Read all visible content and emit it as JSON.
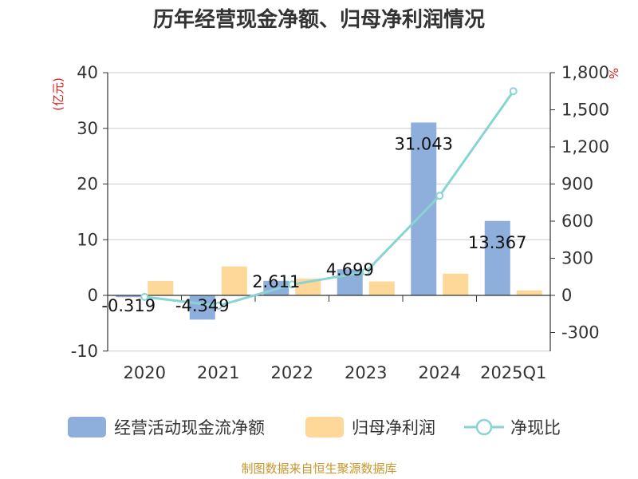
{
  "chart_data": {
    "type": "bar",
    "title": "历年经营现金净额、归母净利润情况",
    "categories": [
      "2020",
      "2021",
      "2022",
      "2023",
      "2024",
      "2025Q1"
    ],
    "left_axis": {
      "unit_label": "(亿元)",
      "range": [
        -10,
        40
      ],
      "ticks": [
        "-10",
        "0",
        "10",
        "20",
        "30",
        "40"
      ],
      "tick_values": [
        -10,
        0,
        10,
        20,
        30,
        40
      ]
    },
    "right_axis": {
      "unit_label": "%",
      "range": [
        -300,
        1800
      ],
      "ticks": [
        "-300",
        "0",
        "300",
        "600",
        "900",
        "1,200",
        "1,500",
        "1,800"
      ],
      "tick_values": [
        -300,
        0,
        300,
        600,
        900,
        1200,
        1500,
        1800
      ]
    },
    "series": [
      {
        "name": "经营活动现金流净额",
        "type": "bar",
        "axis": "left",
        "color": "#8eaedb",
        "values": [
          -0.319,
          -4.349,
          2.611,
          4.699,
          31.043,
          13.367
        ],
        "labels": [
          "-0.319",
          "-4.349",
          "2.611",
          "4.699",
          "31.043",
          "13.367"
        ]
      },
      {
        "name": "归母净利润",
        "type": "bar",
        "axis": "left",
        "color": "#fdd898",
        "values": [
          2.6,
          5.2,
          3.0,
          2.5,
          3.9,
          0.9
        ]
      },
      {
        "name": "净现比",
        "type": "line",
        "axis": "right",
        "color": "#88d4d2",
        "values": [
          -12,
          -84,
          88,
          190,
          805,
          1650
        ]
      }
    ],
    "grid": true,
    "legend_position": "bottom"
  },
  "footer": {
    "source": "制图数据来自恒生聚源数据库"
  }
}
